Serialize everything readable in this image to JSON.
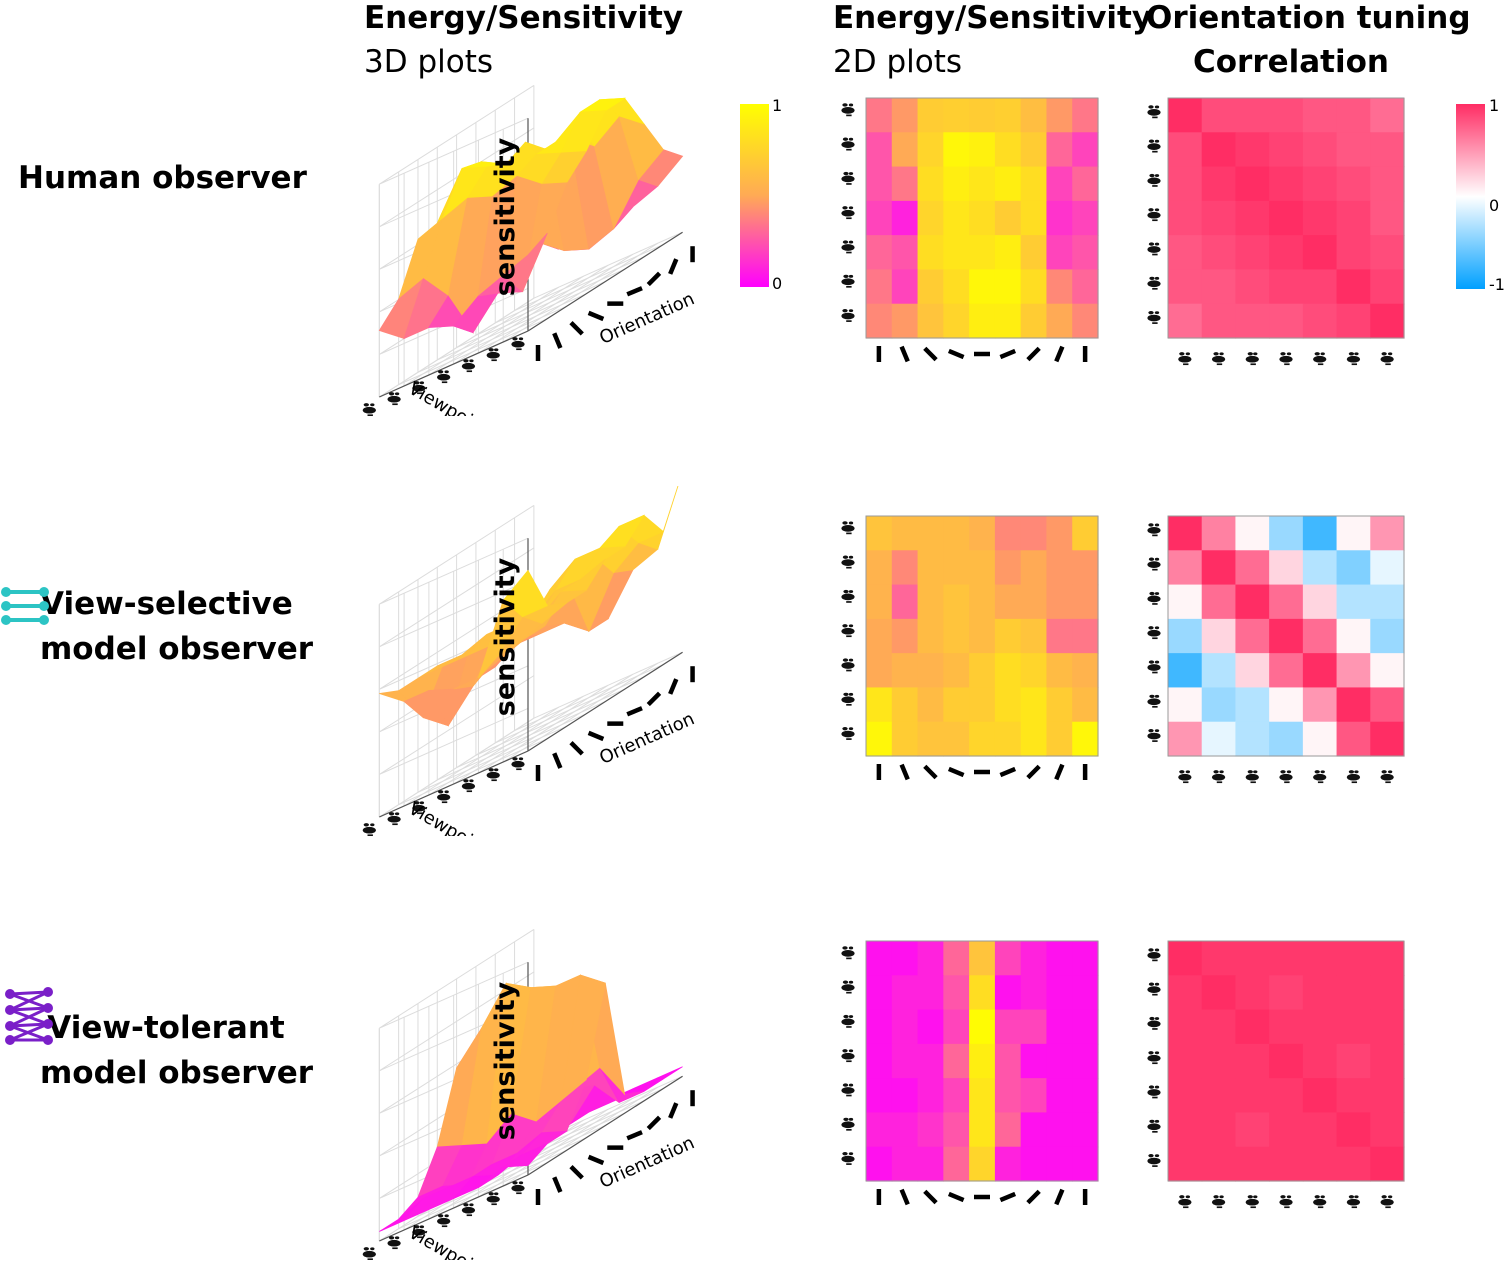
{
  "column_titles": [
    {
      "line1": "Energy/Sensitivity",
      "line2": "3D plots"
    },
    {
      "line1": "Energy/Sensitivity",
      "line2": "2D plots"
    },
    {
      "line1": "Orientation tuning",
      "line2": "Correlation"
    }
  ],
  "row_labels": [
    {
      "line1": "Human observer",
      "line2": ""
    },
    {
      "line1": "View-selective",
      "line2": "model observer"
    },
    {
      "line1": "View-tolerant",
      "line2": "model observer"
    }
  ],
  "axis_labels": {
    "z": "sensitivity",
    "viewpoint": "Viewpoint",
    "orientation": "Orientation"
  },
  "colors": {
    "sensitivity_min": "#ff00ff",
    "sensitivity_mid": "#ffaa55",
    "sensitivity_max": "#ffff00",
    "corr_neg": "#00a0ff",
    "corr_zero": "#ffffff",
    "corr_pos": "#ff2d64",
    "icon_selective": "#2cc4c4",
    "icon_tolerant": "#7a1fc8"
  },
  "icons": [
    "view-selective-network-icon",
    "view-tolerant-network-icon",
    "face-viewpoint-icon",
    "orientation-bar-icon"
  ],
  "colorbars": {
    "sensitivity": {
      "max_label": "1",
      "min_label": "0"
    },
    "correlation": {
      "max_label": "1",
      "mid_label": "0",
      "min_label": "-1"
    }
  },
  "chart_data": [
    {
      "type": "heatmap",
      "name": "Human observer sensitivity",
      "x_categories": [
        "0°",
        "22.5°",
        "45°",
        "67.5°",
        "90°",
        "112.5°",
        "135°",
        "157.5°",
        "180°"
      ],
      "y_categories": [
        "-90°",
        "-60°",
        "-30°",
        "0°",
        "30°",
        "60°",
        "90°"
      ],
      "clim": [
        0,
        1
      ],
      "values": [
        [
          0.35,
          0.45,
          0.7,
          0.72,
          0.7,
          0.72,
          0.62,
          0.45,
          0.35
        ],
        [
          0.25,
          0.5,
          0.75,
          0.95,
          0.92,
          0.8,
          0.7,
          0.3,
          0.2
        ],
        [
          0.25,
          0.35,
          0.8,
          0.9,
          0.85,
          0.9,
          0.8,
          0.2,
          0.3
        ],
        [
          0.2,
          0.1,
          0.75,
          0.85,
          0.8,
          0.7,
          0.8,
          0.15,
          0.2
        ],
        [
          0.3,
          0.25,
          0.8,
          0.85,
          0.85,
          0.9,
          0.7,
          0.2,
          0.25
        ],
        [
          0.35,
          0.2,
          0.7,
          0.8,
          0.95,
          0.95,
          0.8,
          0.4,
          0.3
        ],
        [
          0.4,
          0.45,
          0.65,
          0.75,
          0.9,
          0.9,
          0.7,
          0.5,
          0.4
        ]
      ]
    },
    {
      "type": "heatmap",
      "name": "View-selective model observer sensitivity",
      "x_categories": [
        "0°",
        "22.5°",
        "45°",
        "67.5°",
        "90°",
        "112.5°",
        "135°",
        "157.5°",
        "180°"
      ],
      "y_categories": [
        "-90°",
        "-60°",
        "-30°",
        "0°",
        "30°",
        "60°",
        "90°"
      ],
      "clim": [
        0,
        1
      ],
      "values": [
        [
          0.65,
          0.6,
          0.6,
          0.6,
          0.55,
          0.4,
          0.4,
          0.45,
          0.7
        ],
        [
          0.55,
          0.4,
          0.6,
          0.6,
          0.6,
          0.45,
          0.5,
          0.45,
          0.45
        ],
        [
          0.55,
          0.3,
          0.6,
          0.65,
          0.6,
          0.5,
          0.5,
          0.45,
          0.45
        ],
        [
          0.5,
          0.45,
          0.6,
          0.65,
          0.6,
          0.7,
          0.65,
          0.35,
          0.35
        ],
        [
          0.5,
          0.55,
          0.55,
          0.6,
          0.7,
          0.8,
          0.75,
          0.6,
          0.55
        ],
        [
          0.85,
          0.7,
          0.6,
          0.7,
          0.7,
          0.8,
          0.85,
          0.7,
          0.6
        ],
        [
          0.95,
          0.7,
          0.65,
          0.65,
          0.75,
          0.75,
          0.85,
          0.7,
          0.95
        ]
      ]
    },
    {
      "type": "heatmap",
      "name": "View-tolerant model observer sensitivity",
      "x_categories": [
        "0°",
        "22.5°",
        "45°",
        "67.5°",
        "90°",
        "112.5°",
        "135°",
        "157.5°",
        "180°"
      ],
      "y_categories": [
        "-90°",
        "-60°",
        "-30°",
        "0°",
        "30°",
        "60°",
        "90°"
      ],
      "clim": [
        0,
        1
      ],
      "values": [
        [
          0.05,
          0.05,
          0.1,
          0.3,
          0.65,
          0.2,
          0.1,
          0.05,
          0.05
        ],
        [
          0.05,
          0.1,
          0.1,
          0.25,
          0.8,
          0.05,
          0.1,
          0.05,
          0.05
        ],
        [
          0.05,
          0.1,
          0.05,
          0.2,
          0.98,
          0.2,
          0.2,
          0.05,
          0.05
        ],
        [
          0.05,
          0.1,
          0.1,
          0.3,
          0.9,
          0.25,
          0.05,
          0.05,
          0.05
        ],
        [
          0.05,
          0.05,
          0.1,
          0.2,
          0.85,
          0.25,
          0.2,
          0.05,
          0.05
        ],
        [
          0.1,
          0.1,
          0.15,
          0.25,
          0.85,
          0.3,
          0.05,
          0.05,
          0.05
        ],
        [
          0.05,
          0.1,
          0.1,
          0.3,
          0.75,
          0.1,
          0.05,
          0.05,
          0.05
        ]
      ]
    },
    {
      "type": "heatmap",
      "name": "Human observer orientation tuning correlation",
      "x_categories": [
        "-90°",
        "-60°",
        "-30°",
        "0°",
        "30°",
        "60°",
        "90°"
      ],
      "y_categories": [
        "-90°",
        "-60°",
        "-30°",
        "0°",
        "30°",
        "60°",
        "90°"
      ],
      "clim": [
        -1,
        1
      ],
      "values": [
        [
          1.0,
          0.85,
          0.85,
          0.85,
          0.8,
          0.8,
          0.7
        ],
        [
          0.85,
          1.0,
          0.95,
          0.9,
          0.85,
          0.8,
          0.8
        ],
        [
          0.85,
          0.95,
          1.0,
          0.95,
          0.9,
          0.85,
          0.8
        ],
        [
          0.85,
          0.9,
          0.95,
          1.0,
          0.95,
          0.9,
          0.8
        ],
        [
          0.8,
          0.85,
          0.9,
          0.95,
          1.0,
          0.9,
          0.85
        ],
        [
          0.8,
          0.8,
          0.85,
          0.9,
          0.9,
          1.0,
          0.9
        ],
        [
          0.7,
          0.8,
          0.8,
          0.8,
          0.85,
          0.9,
          1.0
        ]
      ]
    },
    {
      "type": "heatmap",
      "name": "View-selective model observer orientation tuning correlation",
      "x_categories": [
        "-90°",
        "-60°",
        "-30°",
        "0°",
        "30°",
        "60°",
        "90°"
      ],
      "y_categories": [
        "-90°",
        "-60°",
        "-30°",
        "0°",
        "30°",
        "60°",
        "90°"
      ],
      "clim": [
        -1,
        1
      ],
      "values": [
        [
          1.0,
          0.6,
          0.05,
          -0.4,
          -0.75,
          0.05,
          0.5
        ],
        [
          0.6,
          1.0,
          0.7,
          0.2,
          -0.3,
          -0.5,
          -0.1
        ],
        [
          0.05,
          0.7,
          1.0,
          0.7,
          0.2,
          -0.3,
          -0.3
        ],
        [
          -0.4,
          0.2,
          0.7,
          1.0,
          0.7,
          0.05,
          -0.4
        ],
        [
          -0.75,
          -0.3,
          0.2,
          0.7,
          1.0,
          0.5,
          0.05
        ],
        [
          0.05,
          -0.4,
          -0.3,
          0.05,
          0.5,
          1.0,
          0.8
        ],
        [
          0.5,
          -0.1,
          -0.3,
          -0.4,
          0.05,
          0.8,
          1.0
        ]
      ]
    },
    {
      "type": "heatmap",
      "name": "View-tolerant model observer orientation tuning correlation",
      "x_categories": [
        "-90°",
        "-60°",
        "-30°",
        "0°",
        "30°",
        "60°",
        "90°"
      ],
      "y_categories": [
        "-90°",
        "-60°",
        "-30°",
        "0°",
        "30°",
        "60°",
        "90°"
      ],
      "clim": [
        -1,
        1
      ],
      "values": [
        [
          1.0,
          0.95,
          0.95,
          0.95,
          0.95,
          0.95,
          0.95
        ],
        [
          0.95,
          1.0,
          0.95,
          0.9,
          0.95,
          0.95,
          0.95
        ],
        [
          0.95,
          0.95,
          1.0,
          0.95,
          0.95,
          0.95,
          0.95
        ],
        [
          0.95,
          0.95,
          0.95,
          1.0,
          0.95,
          0.9,
          0.95
        ],
        [
          0.95,
          0.95,
          0.95,
          0.95,
          1.0,
          0.95,
          0.95
        ],
        [
          0.95,
          0.95,
          0.9,
          0.95,
          0.95,
          1.0,
          0.95
        ],
        [
          0.95,
          0.95,
          0.95,
          0.95,
          0.95,
          0.95,
          1.0
        ]
      ]
    }
  ]
}
